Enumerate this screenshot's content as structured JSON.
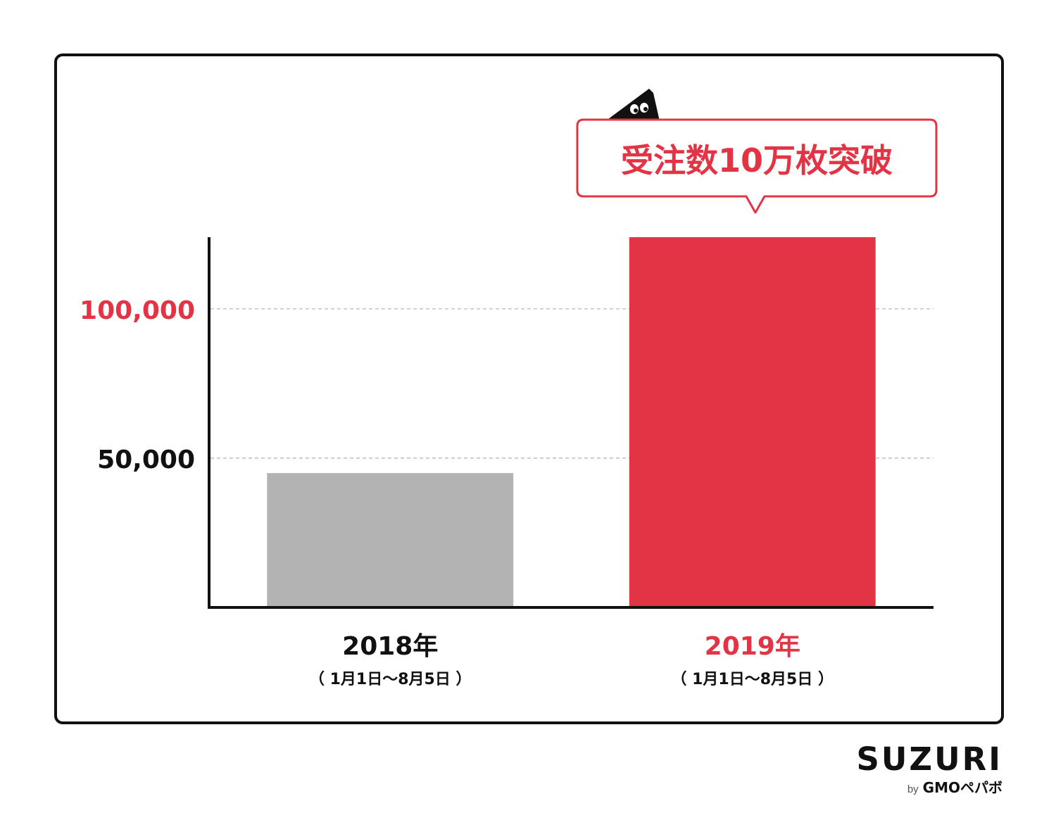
{
  "chart_data": {
    "type": "bar",
    "categories": [
      "2018年",
      "2019年"
    ],
    "category_sublabels": [
      "（ 1月1日〜8月5日 ）",
      "（ 1月1日〜8月5日 ）"
    ],
    "values": [
      45000,
      124000
    ],
    "yticks": [
      {
        "value": 50000,
        "label": "50,000"
      },
      {
        "value": 100000,
        "label": "100,000"
      }
    ],
    "ylim": [
      0,
      124000
    ],
    "grid": "dashed at tick values",
    "annotation": "受注数10万枚突破",
    "colors": {
      "bar_2018": "#b3b3b3",
      "bar_2019": "#e33446",
      "accent": "#e33446",
      "axis": "#111111",
      "grid": "#b0b0b0"
    }
  },
  "brand": {
    "name": "SUZURI",
    "by": "by",
    "company": "GMOペパボ"
  }
}
